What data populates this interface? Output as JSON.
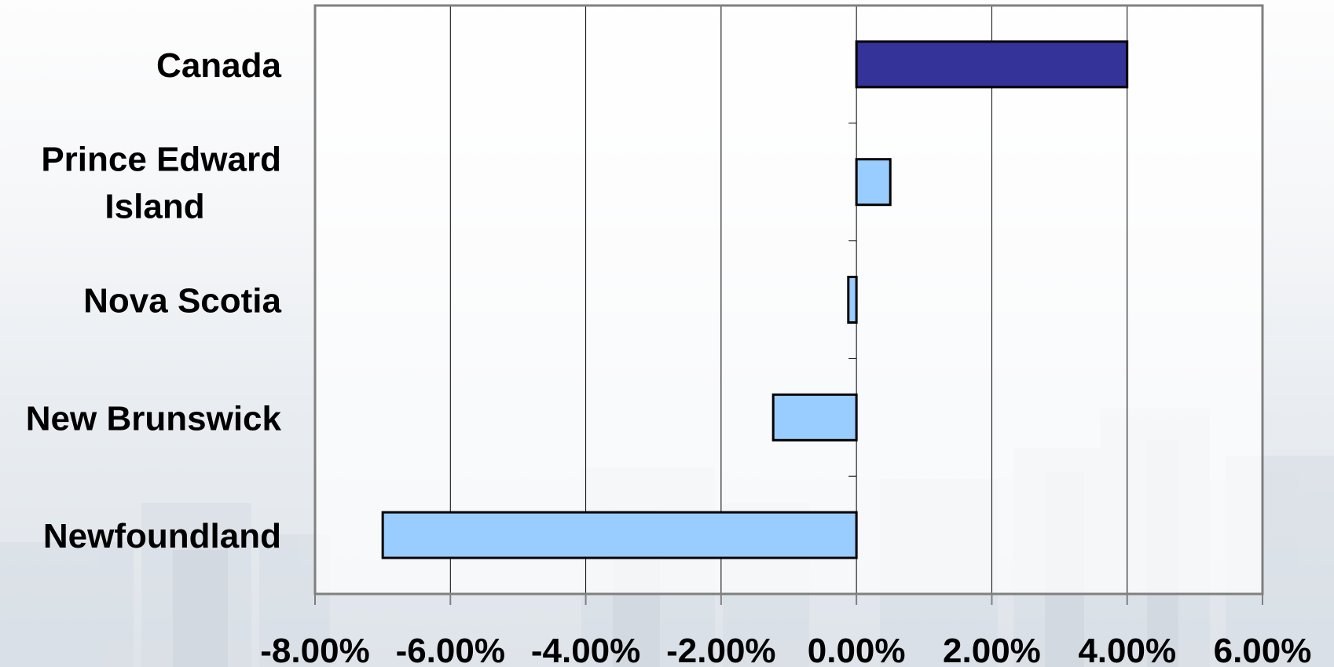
{
  "chart_data": {
    "type": "bar",
    "orientation": "horizontal",
    "title": "",
    "xlabel": "",
    "ylabel": "",
    "categories": [
      "Canada",
      "Prince Edward Island",
      "Nova Scotia",
      "New Brunswick",
      "Newfoundland"
    ],
    "category_lines": [
      [
        "Canada"
      ],
      [
        "Prince Edward",
        "Island"
      ],
      [
        "Nova Scotia"
      ],
      [
        "New Brunswick"
      ],
      [
        "Newfoundland"
      ]
    ],
    "values": [
      4.0,
      0.5,
      -0.12,
      -1.23,
      -7.0
    ],
    "bar_colors": [
      "#333399",
      "#99ccff",
      "#99ccff",
      "#99ccff",
      "#99ccff"
    ],
    "xlim": [
      -8,
      6
    ],
    "xticks": [
      -8,
      -6,
      -4,
      -2,
      0,
      2,
      4,
      6
    ],
    "xtick_labels": [
      "-8.00%",
      "-6.00%",
      "-4.00%",
      "-2.00%",
      "0.00%",
      "2.00%",
      "4.00%",
      "6.00%"
    ],
    "grid": "vertical",
    "legend": "none"
  }
}
